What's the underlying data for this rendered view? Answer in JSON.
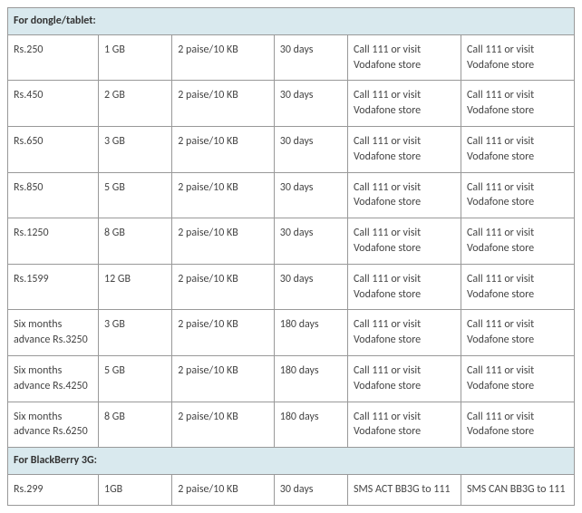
{
  "table": {
    "section1": {
      "header": "For dongle/tablet:",
      "rows": [
        {
          "price": "Rs.250",
          "data": "1 GB",
          "rate": "2 paise/10 KB",
          "validity": "30 days",
          "activate": "Call 111 or visit Vodafone store",
          "deactivate": "Call 111 or visit Vodafone store"
        },
        {
          "price": "Rs.450",
          "data": "2 GB",
          "rate": "2 paise/10 KB",
          "validity": "30 days",
          "activate": "Call 111 or visit Vodafone store",
          "deactivate": "Call 111 or visit Vodafone store"
        },
        {
          "price": "Rs.650",
          "data": "3 GB",
          "rate": "2 paise/10 KB",
          "validity": "30 days",
          "activate": "Call 111 or visit Vodafone store",
          "deactivate": "Call 111 or visit Vodafone store"
        },
        {
          "price": "Rs.850",
          "data": "5 GB",
          "rate": "2 paise/10 KB",
          "validity": "30 days",
          "activate": "Call 111 or visit Vodafone store",
          "deactivate": "Call 111 or visit Vodafone store"
        },
        {
          "price": "Rs.1250",
          "data": "8 GB",
          "rate": "2 paise/10 KB",
          "validity": "30 days",
          "activate": "Call 111 or visit Vodafone store",
          "deactivate": "Call 111 or visit Vodafone store"
        },
        {
          "price": "Rs.1599",
          "data": "12 GB",
          "rate": "2 paise/10 KB",
          "validity": "30 days",
          "activate": "Call 111 or visit Vodafone store",
          "deactivate": "Call 111 or visit Vodafone store"
        },
        {
          "price": "Six months advance Rs.3250",
          "data": "3 GB",
          "rate": "2 paise/10 KB",
          "validity": "180 days",
          "activate": "Call 111 or visit Vodafone store",
          "deactivate": "Call 111 or visit Vodafone store"
        },
        {
          "price": "Six months advance Rs.4250",
          "data": "5 GB",
          "rate": "2 paise/10 KB",
          "validity": "180 days",
          "activate": "Call 111 or visit Vodafone store",
          "deactivate": "Call 111 or visit Vodafone store"
        },
        {
          "price": "Six months advance Rs.6250",
          "data": "8 GB",
          "rate": "2 paise/10 KB",
          "validity": "180 days",
          "activate": "Call 111 or visit Vodafone store",
          "deactivate": "Call 111 or visit Vodafone store"
        }
      ]
    },
    "section2": {
      "header": "For BlackBerry 3G:",
      "rows": [
        {
          "price": "Rs.299",
          "data": "1GB",
          "rate": "2 paise/10 KB",
          "validity": "30 days",
          "activate": "SMS ACT BB3G to 111",
          "deactivate": "SMS CAN BB3G to 111"
        }
      ]
    },
    "colors": {
      "section_bg": "#d9e9ee",
      "border": "#999999",
      "text": "#444444"
    }
  }
}
